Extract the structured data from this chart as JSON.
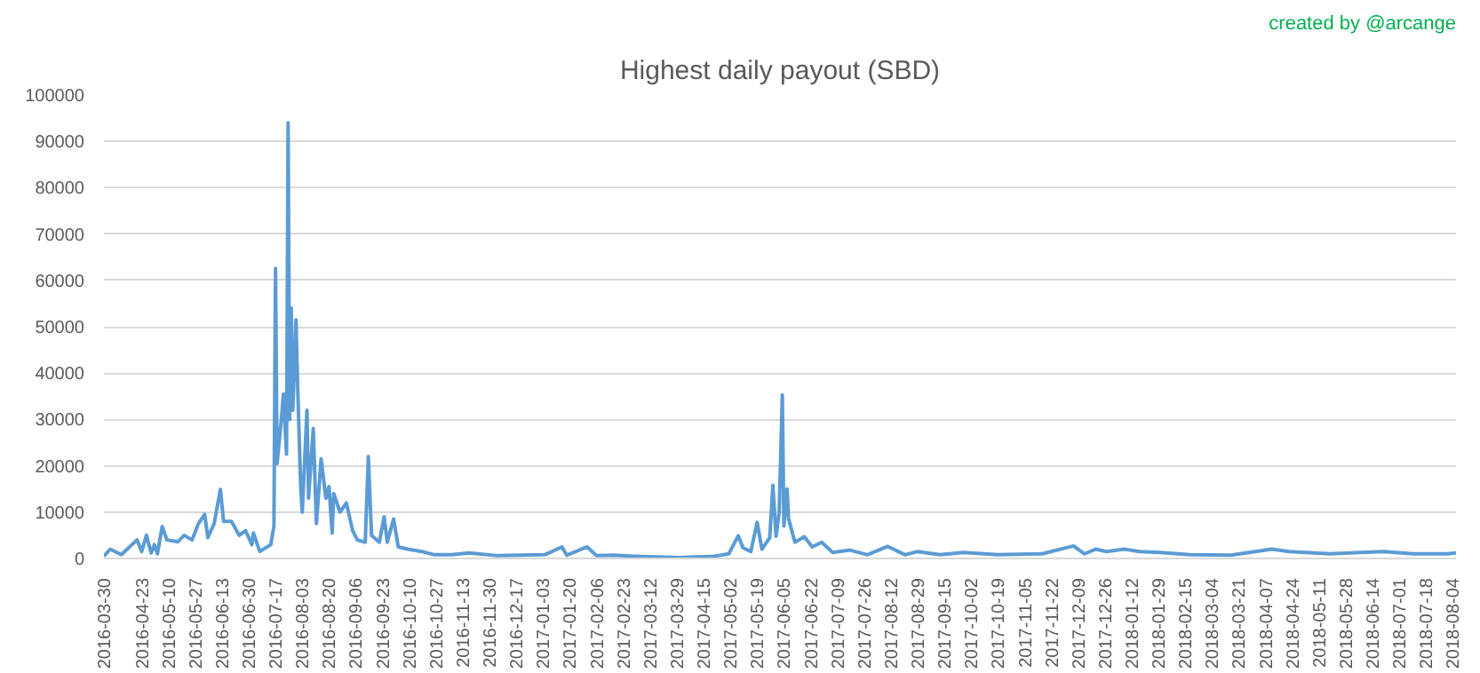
{
  "chart_data": {
    "type": "line",
    "title": "Highest daily payout (SBD)",
    "annotations": [
      "created by @arcange"
    ],
    "x": [
      "2016-03-30",
      "2016-04-03",
      "2016-04-10",
      "2016-04-20",
      "2016-04-23",
      "2016-04-26",
      "2016-04-29",
      "2016-05-01",
      "2016-05-03",
      "2016-05-06",
      "2016-05-09",
      "2016-05-16",
      "2016-05-20",
      "2016-05-25",
      "2016-05-29",
      "2016-06-02",
      "2016-06-04",
      "2016-06-08",
      "2016-06-12",
      "2016-06-14",
      "2016-06-19",
      "2016-06-24",
      "2016-06-28",
      "2016-07-02",
      "2016-07-03",
      "2016-07-07",
      "2016-07-14",
      "2016-07-16",
      "2016-07-17",
      "2016-07-18",
      "2016-07-21",
      "2016-07-22",
      "2016-07-24",
      "2016-07-25",
      "2016-07-26",
      "2016-07-27",
      "2016-07-28",
      "2016-07-30",
      "2016-07-31",
      "2016-08-02",
      "2016-08-03",
      "2016-08-06",
      "2016-08-07",
      "2016-08-10",
      "2016-08-12",
      "2016-08-15",
      "2016-08-18",
      "2016-08-20",
      "2016-08-22",
      "2016-08-23",
      "2016-08-27",
      "2016-08-31",
      "2016-09-04",
      "2016-09-07",
      "2016-09-12",
      "2016-09-14",
      "2016-09-16",
      "2016-09-21",
      "2016-09-24",
      "2016-09-26",
      "2016-09-30",
      "2016-10-03",
      "2016-10-09",
      "2016-10-18",
      "2016-10-26",
      "2016-11-06",
      "2016-11-17",
      "2016-12-05",
      "2017-01-04",
      "2017-01-15",
      "2017-01-18",
      "2017-01-31",
      "2017-02-06",
      "2017-02-17",
      "2017-03-02",
      "2017-03-30",
      "2017-04-22",
      "2017-05-01",
      "2017-05-07",
      "2017-05-10",
      "2017-05-15",
      "2017-05-19",
      "2017-05-22",
      "2017-05-27",
      "2017-05-29",
      "2017-05-31",
      "2017-06-02",
      "2017-06-04",
      "2017-06-05",
      "2017-06-07",
      "2017-06-08",
      "2017-06-12",
      "2017-06-18",
      "2017-06-23",
      "2017-06-29",
      "2017-07-06",
      "2017-07-17",
      "2017-07-28",
      "2017-08-10",
      "2017-08-21",
      "2017-08-29",
      "2017-09-12",
      "2017-09-27",
      "2017-10-19",
      "2017-11-16",
      "2017-12-06",
      "2017-12-13",
      "2017-12-20",
      "2017-12-27",
      "2018-01-07",
      "2018-01-17",
      "2018-01-30",
      "2018-02-18",
      "2018-03-16",
      "2018-04-11",
      "2018-04-22",
      "2018-05-18",
      "2018-06-21",
      "2018-07-10",
      "2018-08-01",
      "2018-08-06"
    ],
    "series": [
      {
        "color": "#5b9bd5",
        "values": [
          500,
          2000,
          800,
          4000,
          1500,
          5000,
          1200,
          3000,
          1000,
          6900,
          4000,
          3600,
          5000,
          4000,
          7500,
          9500,
          4500,
          7500,
          14900,
          8000,
          8000,
          5000,
          6000,
          3000,
          5500,
          1500,
          3000,
          7000,
          62600,
          20500,
          31000,
          35500,
          22500,
          94000,
          30000,
          54000,
          32000,
          51500,
          38000,
          15500,
          10000,
          32000,
          13000,
          28000,
          7500,
          21500,
          13000,
          15500,
          5500,
          14000,
          10000,
          12000,
          6000,
          4000,
          3500,
          22000,
          5000,
          3500,
          9000,
          3500,
          8500,
          2500,
          2000,
          1500,
          800,
          800,
          1200,
          600,
          800,
          2500,
          700,
          2500,
          600,
          700,
          500,
          200,
          500,
          1000,
          4900,
          2300,
          1500,
          7800,
          2000,
          4500,
          15800,
          4800,
          10000,
          35300,
          7000,
          15000,
          8500,
          3500,
          4700,
          2500,
          3500,
          1300,
          1800,
          800,
          2600,
          800,
          1500,
          800,
          1300,
          800,
          1000,
          2700,
          1000,
          2000,
          1500,
          2000,
          1500,
          1300,
          800,
          700,
          2000,
          1500,
          1000,
          1500,
          1000,
          1000,
          1200
        ]
      }
    ],
    "xlim": [
      "2016-03-30",
      "2018-08-06"
    ],
    "xticks": [
      "2016-03-30",
      "2016-04-23",
      "2016-05-10",
      "2016-05-27",
      "2016-06-13",
      "2016-06-30",
      "2016-07-17",
      "2016-08-03",
      "2016-08-20",
      "2016-09-06",
      "2016-09-23",
      "2016-10-10",
      "2016-10-27",
      "2016-11-13",
      "2016-11-30",
      "2016-12-17",
      "2017-01-03",
      "2017-01-20",
      "2017-02-06",
      "2017-02-23",
      "2017-03-12",
      "2017-03-29",
      "2017-04-15",
      "2017-05-02",
      "2017-05-19",
      "2017-06-05",
      "2017-06-22",
      "2017-07-09",
      "2017-07-26",
      "2017-08-12",
      "2017-08-29",
      "2017-09-15",
      "2017-10-02",
      "2017-10-19",
      "2017-11-05",
      "2017-11-22",
      "2017-12-09",
      "2017-12-26",
      "2018-01-12",
      "2018-01-29",
      "2018-02-15",
      "2018-03-04",
      "2018-03-21",
      "2018-04-07",
      "2018-04-24",
      "2018-05-11",
      "2018-05-28",
      "2018-06-14",
      "2018-07-01",
      "2018-07-18",
      "2018-08-04"
    ],
    "ylim": [
      0,
      100000
    ],
    "yticks": [
      0,
      10000,
      20000,
      30000,
      40000,
      50000,
      60000,
      70000,
      80000,
      90000,
      100000
    ],
    "grid": "y",
    "marker": "none",
    "line_style": "solid"
  }
}
